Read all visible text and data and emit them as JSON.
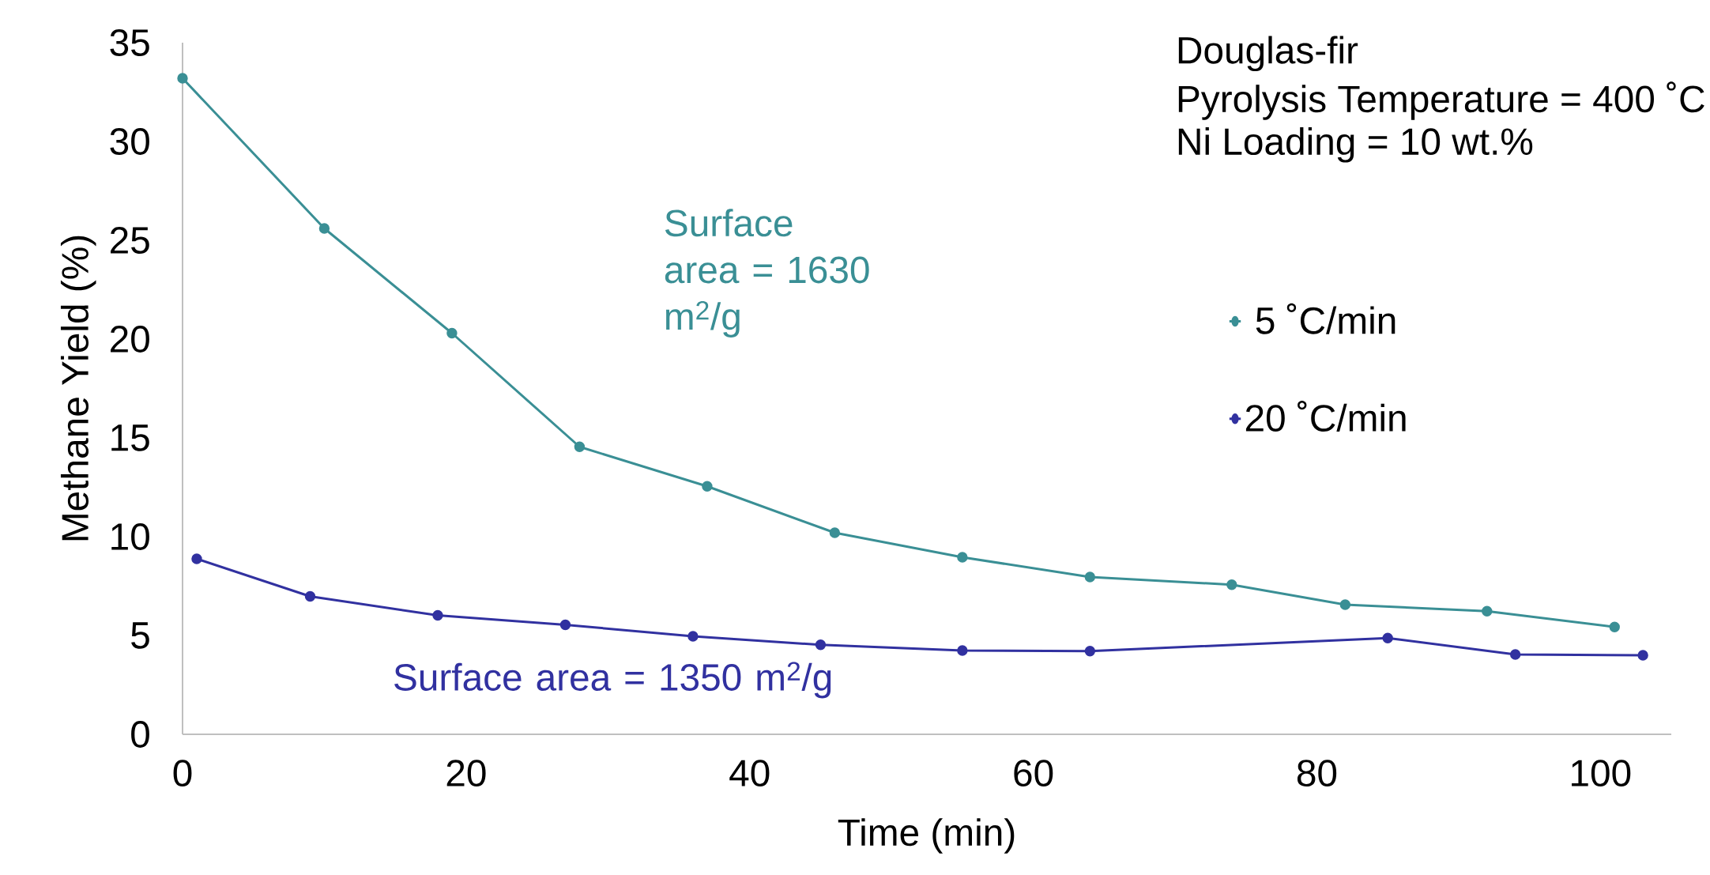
{
  "chart_data": {
    "type": "line",
    "xlabel": "Time (min)",
    "ylabel": "Methane Yield (%)",
    "xlim": [
      0,
      105
    ],
    "ylim": [
      0,
      35
    ],
    "xticks": [
      0,
      20,
      40,
      60,
      80,
      100
    ],
    "yticks": [
      0,
      5,
      10,
      15,
      20,
      25,
      30,
      35
    ],
    "grid": false,
    "legend": "right",
    "marker": "circle",
    "line_style": "solid",
    "annotations": [
      "Douglas-fir",
      "Pyrolysis Temperature = 400 ˚C",
      "Ni Loading = 10 wt.%",
      "Surface area = 1630 m$^{2}$/g",
      "Surface area = 1350 m$^{2}$/g"
    ],
    "series": [
      {
        "name": "5 ˚C/min",
        "color": "#3a8f95",
        "x": [
          0,
          10,
          19,
          28,
          37,
          46,
          55,
          64,
          74,
          82,
          92,
          101
        ],
        "values": [
          33.2,
          25.6,
          20.3,
          14.55,
          12.55,
          10.2,
          8.96,
          7.96,
          7.57,
          6.56,
          6.23,
          5.43
        ]
      },
      {
        "name": "20 ˚C/min",
        "color": "#3131a0",
        "x": [
          1,
          9,
          18,
          27,
          36,
          45,
          55,
          64,
          85,
          94,
          103
        ],
        "values": [
          8.88,
          6.98,
          6.02,
          5.54,
          4.96,
          4.53,
          4.24,
          4.21,
          4.87,
          4.04,
          4.0
        ]
      }
    ]
  }
}
